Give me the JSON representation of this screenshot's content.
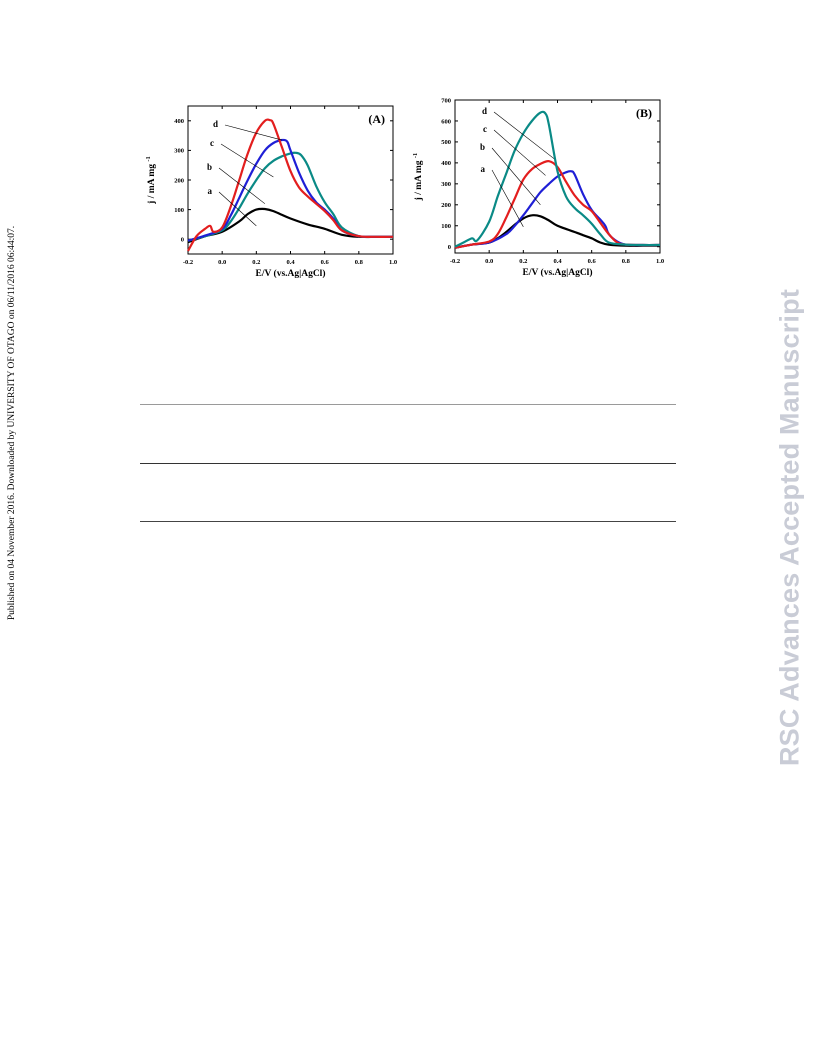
{
  "side_stamp": "Published on 04 November 2016. Downloaded by UNIVERSITY OF OTAGO on 06/11/2016 06:44:07.",
  "watermark": "RSC Advances Accepted Manuscript",
  "chart_data": [
    {
      "type": "line",
      "panel_label": "(A)",
      "xlabel": "E/V (vs.Ag|AgCl)",
      "ylabel": "j / mA mg",
      "ylabel_sup": "-1",
      "xlim": [
        -0.2,
        1.0
      ],
      "ylim": [
        -50,
        450
      ],
      "xticks": [
        -0.2,
        0.0,
        0.2,
        0.4,
        0.6,
        0.8,
        1.0
      ],
      "xtick_labels": [
        "-0.2",
        "0.0",
        "0.2",
        "0.4",
        "0.6",
        "0.8",
        "1.0"
      ],
      "yticks": [
        0,
        100,
        200,
        300,
        400
      ],
      "ytick_labels": [
        "0",
        "100",
        "200",
        "300",
        "400"
      ],
      "series": [
        {
          "name": "a",
          "color": "#000000",
          "x": [
            -0.2,
            -0.1,
            0.0,
            0.1,
            0.15,
            0.2,
            0.25,
            0.3,
            0.35,
            0.4,
            0.5,
            0.6,
            0.7,
            0.8,
            0.9,
            1.0
          ],
          "y": [
            -10,
            10,
            25,
            60,
            85,
            100,
            102,
            95,
            82,
            70,
            50,
            35,
            15,
            8,
            8,
            8
          ]
        },
        {
          "name": "b",
          "color": "#0a8a86",
          "x": [
            -0.2,
            -0.1,
            0.0,
            0.05,
            0.1,
            0.15,
            0.2,
            0.25,
            0.3,
            0.35,
            0.4,
            0.43,
            0.46,
            0.5,
            0.55,
            0.6,
            0.65,
            0.7,
            0.8,
            0.9,
            1.0
          ],
          "y": [
            -5,
            10,
            30,
            60,
            105,
            155,
            200,
            240,
            265,
            280,
            290,
            292,
            285,
            250,
            180,
            125,
            85,
            40,
            10,
            8,
            8
          ]
        },
        {
          "name": "c",
          "color": "#1f1fd6",
          "x": [
            -0.2,
            -0.1,
            0.0,
            0.05,
            0.1,
            0.15,
            0.2,
            0.25,
            0.3,
            0.35,
            0.38,
            0.4,
            0.45,
            0.5,
            0.55,
            0.6,
            0.65,
            0.7,
            0.8,
            0.9,
            1.0
          ],
          "y": [
            -5,
            12,
            35,
            80,
            140,
            200,
            255,
            300,
            325,
            335,
            330,
            300,
            225,
            165,
            125,
            100,
            70,
            30,
            10,
            8,
            8
          ]
        },
        {
          "name": "d",
          "color": "#e31e1e",
          "x": [
            -0.2,
            -0.15,
            -0.1,
            -0.07,
            -0.05,
            0.0,
            0.05,
            0.1,
            0.15,
            0.2,
            0.25,
            0.28,
            0.3,
            0.35,
            0.4,
            0.45,
            0.5,
            0.55,
            0.6,
            0.65,
            0.7,
            0.8,
            0.9,
            1.0
          ],
          "y": [
            -40,
            10,
            35,
            45,
            25,
            40,
            110,
            200,
            290,
            360,
            400,
            402,
            390,
            310,
            230,
            175,
            145,
            120,
            95,
            65,
            30,
            10,
            8,
            8
          ]
        }
      ],
      "annotations": [
        "a",
        "b",
        "c",
        "d"
      ]
    },
    {
      "type": "line",
      "panel_label": "(B)",
      "xlabel": "E/V (vs.Ag|AgCl)",
      "ylabel": "j / mA mg",
      "ylabel_sup": "-1",
      "xlim": [
        -0.2,
        1.0
      ],
      "ylim": [
        -30,
        700
      ],
      "xticks": [
        -0.2,
        0.0,
        0.2,
        0.4,
        0.6,
        0.8,
        1.0
      ],
      "xtick_labels": [
        "-0.2",
        "0.0",
        "0.2",
        "0.4",
        "0.6",
        "0.8",
        "1.0"
      ],
      "yticks": [
        0,
        100,
        200,
        300,
        400,
        500,
        600,
        700
      ],
      "ytick_labels": [
        "0",
        "100",
        "200",
        "300",
        "400",
        "500",
        "600",
        "700"
      ],
      "series": [
        {
          "name": "a",
          "color": "#000000",
          "x": [
            -0.2,
            -0.1,
            0.0,
            0.05,
            0.1,
            0.15,
            0.2,
            0.25,
            0.3,
            0.35,
            0.4,
            0.5,
            0.55,
            0.6,
            0.65,
            0.7,
            0.8,
            0.9,
            1.0
          ],
          "y": [
            -5,
            10,
            20,
            40,
            70,
            105,
            135,
            150,
            145,
            125,
            100,
            70,
            55,
            40,
            20,
            10,
            5,
            5,
            5
          ]
        },
        {
          "name": "b",
          "color": "#1f1fd6",
          "x": [
            -0.2,
            -0.1,
            0.0,
            0.1,
            0.15,
            0.2,
            0.25,
            0.3,
            0.35,
            0.4,
            0.45,
            0.48,
            0.5,
            0.55,
            0.6,
            0.65,
            0.68,
            0.7,
            0.75,
            0.8,
            0.9,
            1.0
          ],
          "y": [
            -5,
            10,
            20,
            60,
            100,
            150,
            205,
            260,
            300,
            335,
            355,
            360,
            345,
            250,
            175,
            130,
            100,
            60,
            25,
            10,
            8,
            8
          ]
        },
        {
          "name": "c",
          "color": "#e31e1e",
          "x": [
            -0.2,
            -0.1,
            0.0,
            0.05,
            0.1,
            0.15,
            0.2,
            0.25,
            0.3,
            0.35,
            0.4,
            0.45,
            0.5,
            0.55,
            0.6,
            0.65,
            0.7,
            0.75,
            0.8,
            0.9,
            1.0
          ],
          "y": [
            -5,
            10,
            25,
            60,
            140,
            230,
            320,
            370,
            395,
            408,
            380,
            310,
            245,
            200,
            170,
            115,
            60,
            20,
            10,
            8,
            8
          ]
        },
        {
          "name": "d",
          "color": "#0a8a86",
          "x": [
            -0.2,
            -0.15,
            -0.1,
            -0.07,
            0.0,
            0.05,
            0.1,
            0.15,
            0.2,
            0.25,
            0.3,
            0.33,
            0.35,
            0.4,
            0.45,
            0.5,
            0.55,
            0.6,
            0.65,
            0.7,
            0.8,
            0.9,
            1.0
          ],
          "y": [
            0,
            20,
            40,
            30,
            120,
            240,
            350,
            460,
            540,
            600,
            640,
            635,
            580,
            360,
            240,
            185,
            150,
            110,
            60,
            20,
            10,
            8,
            8
          ]
        }
      ],
      "annotations": [
        "a",
        "b",
        "c",
        "d"
      ]
    }
  ]
}
